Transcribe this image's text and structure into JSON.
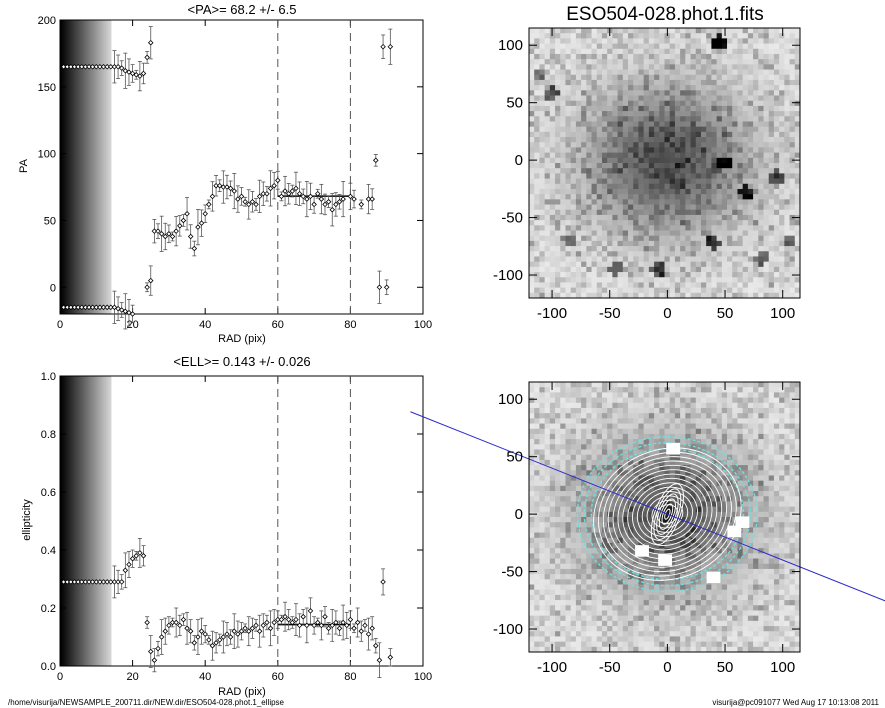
{
  "footer": {
    "left": "/home/visurija/NEWSAMPLE_200711.dir/NEW.dir/ESO504-028.phot.1_ellipse",
    "right": "visurija@pc091077  Wed Aug 17 10:13:08 2011"
  },
  "chart_data": [
    {
      "id": "pa",
      "type": "scatter",
      "title": "<PA>=  68.2 +/-   6.5",
      "xlabel": "RAD (pix)",
      "ylabel": "PA",
      "xlim": [
        0,
        100
      ],
      "ylim": [
        -20,
        200
      ],
      "xticks": [
        0,
        20,
        40,
        60,
        80,
        100
      ],
      "yticks": [
        0,
        50,
        100,
        150,
        200
      ],
      "vlines": [
        60,
        80
      ],
      "shaded_region": [
        0,
        14
      ],
      "fit": {
        "x": [
          60,
          80
        ],
        "y": 68.2
      },
      "series": [
        {
          "points": [
            [
              1,
              165
            ],
            [
              2,
              165
            ],
            [
              3,
              165
            ],
            [
              4,
              165
            ],
            [
              5,
              165
            ],
            [
              6,
              165
            ],
            [
              7,
              165
            ],
            [
              8,
              165
            ],
            [
              9,
              165
            ],
            [
              10,
              165
            ],
            [
              11,
              165
            ],
            [
              12,
              165
            ],
            [
              13,
              165
            ],
            [
              14,
              165
            ],
            [
              15,
              165
            ],
            [
              16,
              165
            ],
            [
              17,
              164
            ],
            [
              18,
              162
            ],
            [
              19,
              161
            ],
            [
              20,
              160
            ],
            [
              21,
              159
            ],
            [
              22,
              158
            ],
            [
              23,
              160
            ],
            [
              24,
              172
            ],
            [
              25,
              183
            ],
            [
              26,
              42
            ],
            [
              27,
              42
            ],
            [
              28,
              40
            ],
            [
              29,
              38
            ],
            [
              30,
              40
            ],
            [
              31,
              38
            ],
            [
              32,
              42
            ],
            [
              33,
              46
            ],
            [
              34,
              50
            ],
            [
              35,
              55
            ],
            [
              36,
              38
            ],
            [
              37,
              29
            ],
            [
              38,
              45
            ],
            [
              39,
              48
            ],
            [
              40,
              55
            ],
            [
              41,
              62
            ],
            [
              42,
              68
            ],
            [
              43,
              76
            ],
            [
              44,
              76
            ],
            [
              45,
              75
            ],
            [
              46,
              75
            ],
            [
              47,
              74
            ],
            [
              48,
              72
            ],
            [
              49,
              66
            ],
            [
              50,
              68
            ],
            [
              51,
              64
            ],
            [
              52,
              62
            ],
            [
              53,
              64
            ],
            [
              54,
              62
            ],
            [
              55,
              68
            ],
            [
              56,
              70
            ],
            [
              57,
              70
            ],
            [
              58,
              74
            ],
            [
              59,
              76
            ],
            [
              60,
              80
            ],
            [
              61,
              68
            ],
            [
              62,
              72
            ],
            [
              63,
              70
            ],
            [
              64,
              72
            ],
            [
              65,
              74
            ],
            [
              66,
              70
            ],
            [
              67,
              68
            ],
            [
              68,
              66
            ],
            [
              69,
              68
            ],
            [
              70,
              62
            ],
            [
              71,
              70
            ],
            [
              72,
              66
            ],
            [
              73,
              62
            ],
            [
              74,
              64
            ],
            [
              75,
              58
            ],
            [
              76,
              62
            ],
            [
              77,
              64
            ],
            [
              78,
              66
            ],
            [
              80,
              68
            ],
            [
              81,
              66
            ],
            [
              83,
              62
            ],
            [
              85,
              66
            ],
            [
              86,
              66
            ],
            [
              87,
              95
            ],
            [
              88,
              0
            ],
            [
              89,
              180
            ],
            [
              90,
              0
            ],
            [
              91,
              180
            ]
          ]
        },
        {
          "points": [
            [
              1,
              -15
            ],
            [
              2,
              -15
            ],
            [
              3,
              -15
            ],
            [
              4,
              -15
            ],
            [
              5,
              -15
            ],
            [
              6,
              -15
            ],
            [
              7,
              -15
            ],
            [
              8,
              -15
            ],
            [
              9,
              -15
            ],
            [
              10,
              -15
            ],
            [
              11,
              -15
            ],
            [
              12,
              -15
            ],
            [
              13,
              -15
            ],
            [
              14,
              -15
            ],
            [
              15,
              -15
            ],
            [
              16,
              -16
            ],
            [
              17,
              -17
            ],
            [
              18,
              -18
            ],
            [
              19,
              -19
            ],
            [
              20,
              -20
            ],
            [
              24,
              0
            ],
            [
              25,
              5
            ]
          ]
        }
      ]
    },
    {
      "id": "ell",
      "type": "scatter",
      "title": "<ELL>= 0.143 +/-  0.026",
      "xlabel": "RAD (pix)",
      "ylabel": "ellipticity",
      "xlim": [
        0,
        100
      ],
      "ylim": [
        0.0,
        1.0
      ],
      "xticks": [
        0,
        20,
        40,
        60,
        80,
        100
      ],
      "yticks": [
        0.0,
        0.2,
        0.4,
        0.6,
        0.8,
        1.0
      ],
      "vlines": [
        60,
        80
      ],
      "shaded_region": [
        0,
        14
      ],
      "fit": {
        "x": [
          60,
          80
        ],
        "y": 0.143
      },
      "series": [
        {
          "points": [
            [
              1,
              0.29
            ],
            [
              2,
              0.29
            ],
            [
              3,
              0.29
            ],
            [
              4,
              0.29
            ],
            [
              5,
              0.29
            ],
            [
              6,
              0.29
            ],
            [
              7,
              0.29
            ],
            [
              8,
              0.29
            ],
            [
              9,
              0.29
            ],
            [
              10,
              0.29
            ],
            [
              11,
              0.29
            ],
            [
              12,
              0.29
            ],
            [
              13,
              0.29
            ],
            [
              14,
              0.29
            ],
            [
              15,
              0.29
            ],
            [
              16,
              0.29
            ],
            [
              17,
              0.29
            ],
            [
              18,
              0.33
            ],
            [
              19,
              0.35
            ],
            [
              20,
              0.37
            ],
            [
              21,
              0.38
            ],
            [
              22,
              0.39
            ],
            [
              23,
              0.38
            ],
            [
              24,
              0.15
            ],
            [
              25,
              0.05
            ],
            [
              26,
              0.02
            ],
            [
              27,
              0.06
            ],
            [
              28,
              0.1
            ],
            [
              29,
              0.12
            ],
            [
              30,
              0.14
            ],
            [
              31,
              0.15
            ],
            [
              32,
              0.15
            ],
            [
              33,
              0.14
            ],
            [
              34,
              0.16
            ],
            [
              35,
              0.13
            ],
            [
              36,
              0.12
            ],
            [
              37,
              0.08
            ],
            [
              38,
              0.1
            ],
            [
              39,
              0.12
            ],
            [
              40,
              0.11
            ],
            [
              41,
              0.09
            ],
            [
              42,
              0.07
            ],
            [
              43,
              0.08
            ],
            [
              44,
              0.09
            ],
            [
              45,
              0.1
            ],
            [
              46,
              0.11
            ],
            [
              47,
              0.1
            ],
            [
              48,
              0.12
            ],
            [
              49,
              0.11
            ],
            [
              50,
              0.12
            ],
            [
              51,
              0.13
            ],
            [
              52,
              0.12
            ],
            [
              53,
              0.13
            ],
            [
              54,
              0.14
            ],
            [
              55,
              0.12
            ],
            [
              56,
              0.14
            ],
            [
              57,
              0.15
            ],
            [
              58,
              0.13
            ],
            [
              59,
              0.15
            ],
            [
              60,
              0.16
            ],
            [
              61,
              0.16
            ],
            [
              62,
              0.17
            ],
            [
              63,
              0.16
            ],
            [
              64,
              0.15
            ],
            [
              65,
              0.16
            ],
            [
              66,
              0.14
            ],
            [
              67,
              0.17
            ],
            [
              68,
              0.14
            ],
            [
              69,
              0.19
            ],
            [
              70,
              0.14
            ],
            [
              71,
              0.15
            ],
            [
              72,
              0.14
            ],
            [
              73,
              0.17
            ],
            [
              74,
              0.13
            ],
            [
              75,
              0.14
            ],
            [
              76,
              0.15
            ],
            [
              77,
              0.13
            ],
            [
              78,
              0.15
            ],
            [
              79,
              0.14
            ],
            [
              80,
              0.16
            ],
            [
              81,
              0.13
            ],
            [
              82,
              0.15
            ],
            [
              83,
              0.12
            ],
            [
              84,
              0.14
            ],
            [
              85,
              0.11
            ],
            [
              86,
              0.13
            ],
            [
              87,
              0.07
            ],
            [
              88,
              0.02
            ],
            [
              89,
              0.29
            ],
            [
              91,
              0.03
            ]
          ]
        }
      ]
    },
    {
      "id": "img1",
      "type": "heatmap",
      "title": "ESO504-028.phot.1.fits",
      "xlim": [
        -120,
        115
      ],
      "ylim": [
        -120,
        115
      ],
      "xticks": [
        -100,
        -50,
        0,
        50,
        100
      ],
      "yticks": [
        -100,
        -50,
        0,
        50,
        100
      ],
      "sources": [
        [
          45,
          103,
          0.8
        ],
        [
          50,
          -2,
          0.55
        ],
        [
          -100,
          58,
          0.45
        ],
        [
          68,
          -28,
          0.6
        ],
        [
          40,
          -72,
          0.55
        ],
        [
          -45,
          -95,
          0.45
        ],
        [
          95,
          -15,
          0.5
        ],
        [
          105,
          -70,
          0.45
        ],
        [
          -8,
          -95,
          0.5
        ],
        [
          82,
          -85,
          0.45
        ],
        [
          -85,
          -70,
          0.4
        ],
        [
          -110,
          75,
          0.4
        ]
      ]
    },
    {
      "id": "img2",
      "type": "heatmap",
      "xlim": [
        -120,
        115
      ],
      "ylim": [
        -120,
        115
      ],
      "xticks": [
        -100,
        -50,
        0,
        50,
        100
      ],
      "yticks": [
        -100,
        -50,
        0,
        50,
        100
      ],
      "pa_line_deg": 68.2,
      "ellipse_center": [
        0,
        0
      ]
    }
  ]
}
